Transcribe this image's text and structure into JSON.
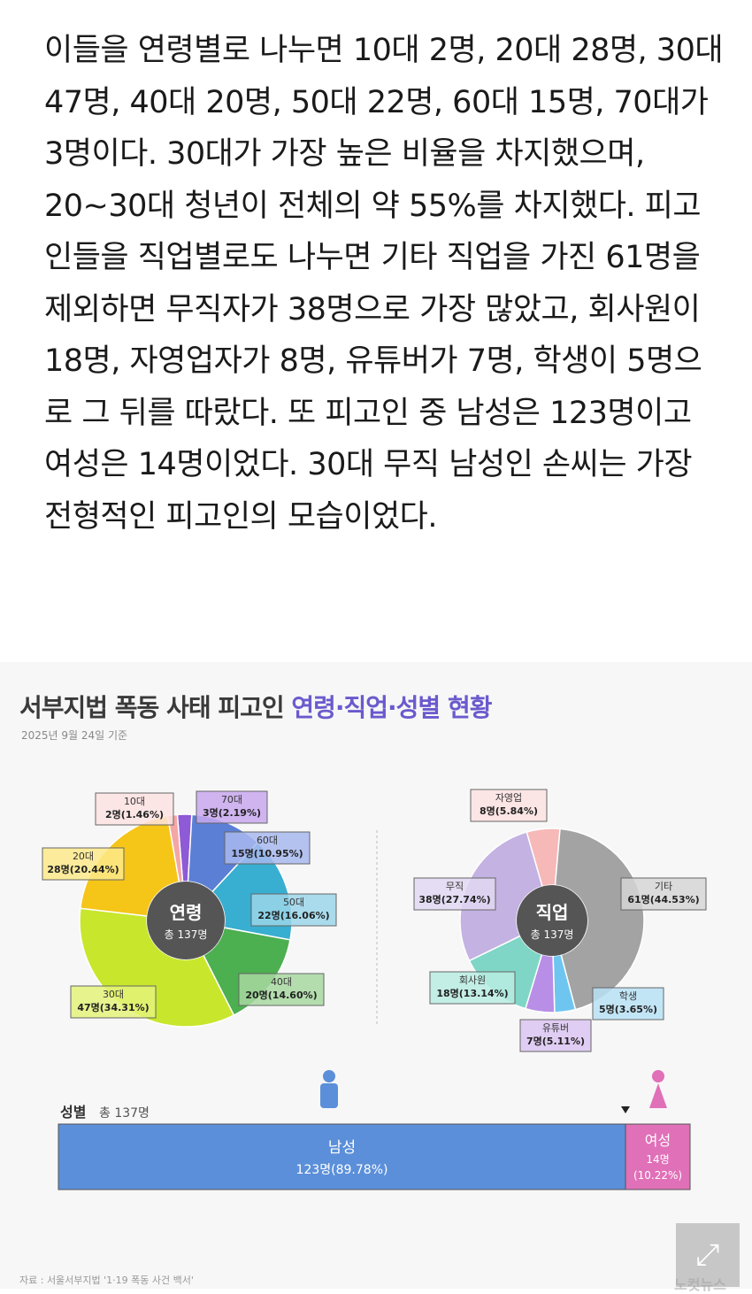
{
  "article": {
    "paragraph": "이들을 연령별로 나누면 10대 2명, 20대 28명, 30대 47명, 40대 20명, 50대 22명, 60대 15명, 70대가 3명이다. 30대가 가장 높은 비율을 차지했으며, 20~30대 청년이 전체의 약 55%를 차지했다. 피고인들을 직업별로도 나누면 기타 직업을 가진 61명을 제외하면 무직자가 38명으로 가장 많았고, 회사원이 18명, 자영업자가 8명, 유튜버가 7명, 학생이 5명으로 그 뒤를 따랐다. 또 피고인 중 남성은 123명이고 여성은 14명이었다. 30대 무직 남성인 손씨는 가장 전형적인 피고인의 모습이었다."
  },
  "infographic": {
    "title_part1": "서부지법 폭동 사태 피고인 ",
    "title_part2": "연령·직업·성별 현황",
    "date": "2025년 9월 24일 기준",
    "source": "자료 : 서울서부지법 '1·19 폭동 사건 백서'",
    "watermark": "노컷뉴스"
  },
  "chart_data": [
    {
      "type": "pie",
      "center_label": "연령",
      "center_sub": "총 137명",
      "slices": [
        {
          "name": "10대",
          "value": 2,
          "text": "2명(1.46%)",
          "color": "#f4a6a6"
        },
        {
          "name": "20대",
          "value": 28,
          "text": "28명(20.44%)",
          "color": "#f5c518"
        },
        {
          "name": "30대",
          "value": 47,
          "text": "47명(34.31%)",
          "color": "#c8e62c"
        },
        {
          "name": "40대",
          "value": 20,
          "text": "20명(14.60%)",
          "color": "#4caf50"
        },
        {
          "name": "50대",
          "value": 22,
          "text": "22명(16.06%)",
          "color": "#38aed0"
        },
        {
          "name": "60대",
          "value": 15,
          "text": "15명(10.95%)",
          "color": "#5c7fd6"
        },
        {
          "name": "70대",
          "value": 3,
          "text": "3명(2.19%)",
          "color": "#8e5ad6"
        }
      ]
    },
    {
      "type": "pie",
      "center_label": "직업",
      "center_sub": "총 137명",
      "slices": [
        {
          "name": "자영업",
          "value": 8,
          "text": "8명(5.84%)",
          "color": "#f7b8b8"
        },
        {
          "name": "기타",
          "value": 61,
          "text": "61명(44.53%)",
          "color": "#a3a3a3"
        },
        {
          "name": "학생",
          "value": 5,
          "text": "5명(3.65%)",
          "color": "#6ec6f0"
        },
        {
          "name": "유튜버",
          "value": 7,
          "text": "7명(5.11%)",
          "color": "#b88ee6"
        },
        {
          "name": "회사원",
          "value": 18,
          "text": "18명(13.14%)",
          "color": "#7fd6c6"
        },
        {
          "name": "무직",
          "value": 38,
          "text": "38명(27.74%)",
          "color": "#c4b2e3"
        }
      ]
    },
    {
      "type": "bar",
      "title": "성별",
      "subtitle": "총 137명",
      "segments": [
        {
          "name": "남성",
          "value": 123,
          "text": "123명(89.78%)",
          "color": "#5b8fd9"
        },
        {
          "name": "여성",
          "value": 14,
          "count_text": "14명",
          "pct_text": "(10.22%)",
          "color": "#e070b8"
        }
      ]
    }
  ]
}
